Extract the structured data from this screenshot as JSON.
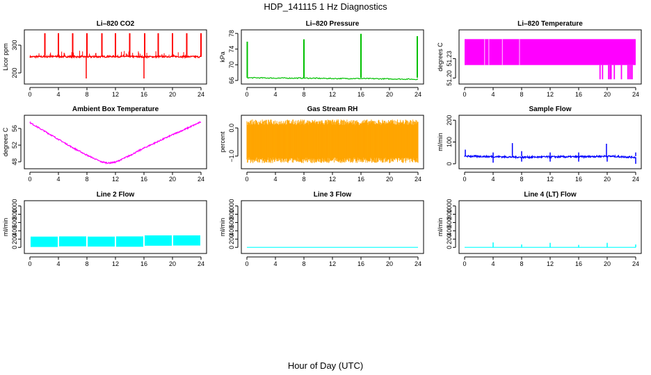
{
  "page": {
    "title": "HDP_141115  1 Hz Diagnostics",
    "xlabel": "Hour of Day (UTC)"
  },
  "chart_data": [
    {
      "id": "co2",
      "type": "line",
      "title": "Li–820 CO2",
      "ylabel": "Licor ppm",
      "color": "#ff0000",
      "style": "co2",
      "xlim": [
        0,
        24
      ],
      "ylim": [
        170,
        345
      ],
      "xticks": [
        0,
        4,
        8,
        12,
        16,
        20,
        24
      ],
      "xtick_labels": [
        "0",
        "4",
        "8",
        "12",
        "16",
        "20",
        "24"
      ],
      "yticks": [
        200,
        300
      ],
      "ytick_labels": [
        "200",
        "300"
      ],
      "x": [
        0,
        4,
        8,
        12,
        16,
        20,
        24
      ],
      "y": [
        258,
        259,
        258,
        259,
        258,
        259,
        258
      ],
      "spikes_up": [
        2.1,
        4.0,
        6.0,
        8.0,
        10.1,
        12.0,
        14.0,
        16.1,
        18.0,
        20.0,
        22.0,
        24.0
      ],
      "spikes_down": [
        7.9,
        16.0
      ]
    },
    {
      "id": "pressure",
      "type": "line",
      "title": "Li–820 Pressure",
      "ylabel": "kPa",
      "color": "#00c000",
      "style": "pressure",
      "xlim": [
        0,
        24
      ],
      "ylim": [
        65.8,
        78.2
      ],
      "xticks": [
        0,
        4,
        8,
        12,
        16,
        20,
        24
      ],
      "xtick_labels": [
        "0",
        "4",
        "8",
        "12",
        "16",
        "20",
        "24"
      ],
      "yticks": [
        66,
        70,
        74,
        78
      ],
      "ytick_labels": [
        "66",
        "70",
        "74",
        "78"
      ],
      "x": [
        0,
        4,
        8,
        12,
        16,
        20,
        24
      ],
      "y": [
        66.7,
        66.6,
        66.6,
        66.5,
        66.5,
        66.4,
        66.3
      ],
      "spikes": [
        [
          0.05,
          75.9
        ],
        [
          8.0,
          76.5
        ],
        [
          16.0,
          77.9
        ],
        [
          23.9,
          77.3
        ]
      ]
    },
    {
      "id": "temperature",
      "type": "line",
      "title": "Li–820 Temperature",
      "ylabel": "degrees C",
      "color": "#ff00ff",
      "style": "licortemp",
      "xlim": [
        0,
        24
      ],
      "ylim": [
        51.195,
        51.27
      ],
      "xticks": [
        0,
        4,
        8,
        12,
        16,
        20,
        24
      ],
      "xtick_labels": [
        "0",
        "4",
        "8",
        "12",
        "16",
        "20",
        "24"
      ],
      "yticks": [
        51.2,
        51.23
      ],
      "ytick_labels": [
        "51.20",
        "51.23"
      ],
      "y_levels": [
        51.22,
        51.26
      ],
      "gaps": [
        2.8,
        3.4,
        5.3,
        7.7
      ],
      "drops": [
        19.0,
        19.35,
        20.2,
        20.4,
        20.55,
        21.0,
        22.0,
        22.9,
        23.1,
        23.3,
        23.5
      ]
    },
    {
      "id": "ambient",
      "type": "line",
      "title": "Ambient Box Temperature",
      "ylabel": "degrees C",
      "color": "#ff00ff",
      "style": "ambient",
      "xlim": [
        0,
        24
      ],
      "ylim": [
        47,
        58.5
      ],
      "xticks": [
        0,
        4,
        8,
        12,
        16,
        20,
        24
      ],
      "xtick_labels": [
        "0",
        "4",
        "8",
        "12",
        "16",
        "20",
        "24"
      ],
      "yticks": [
        48,
        52,
        56
      ],
      "ytick_labels": [
        "48",
        "52",
        "56"
      ],
      "x": [
        0,
        2,
        4,
        6,
        8,
        10,
        11,
        12,
        14,
        16,
        18,
        20,
        22,
        24
      ],
      "y": [
        57.4,
        55.4,
        53.4,
        51.4,
        49.6,
        48.0,
        47.7,
        47.9,
        49.5,
        51.3,
        52.9,
        54.5,
        56.0,
        57.6
      ]
    },
    {
      "id": "rh",
      "type": "line",
      "title": "Gas Stream RH",
      "ylabel": "percent",
      "color": "#ffa500",
      "style": "band",
      "xlim": [
        0,
        24
      ],
      "ylim": [
        -1.35,
        0.35
      ],
      "xticks": [
        0,
        4,
        8,
        12,
        16,
        20,
        24
      ],
      "xtick_labels": [
        "0",
        "4",
        "8",
        "12",
        "16",
        "20",
        "24"
      ],
      "yticks": [
        -1.0,
        0.0
      ],
      "ytick_labels": [
        "−1.0",
        "0.0"
      ],
      "band": [
        -1.05,
        0.1
      ],
      "noise": 0.2
    },
    {
      "id": "sample_flow",
      "type": "line",
      "title": "Sample Flow",
      "ylabel": "ml/min",
      "color": "#0000ff",
      "style": "sampleflow",
      "xlim": [
        0,
        24
      ],
      "ylim": [
        -10,
        210
      ],
      "xticks": [
        0,
        4,
        8,
        12,
        16,
        20,
        24
      ],
      "xtick_labels": [
        "0",
        "4",
        "8",
        "12",
        "16",
        "20",
        "24"
      ],
      "yticks": [
        0,
        100,
        200
      ],
      "ytick_labels": [
        "0",
        "100",
        "200"
      ],
      "x": [
        0,
        4,
        8,
        12,
        16,
        20,
        24
      ],
      "y": [
        35,
        33,
        30,
        32,
        32,
        35,
        30
      ],
      "spikes_up": [
        [
          0.1,
          65
        ],
        [
          4.0,
          52
        ],
        [
          6.7,
          95
        ],
        [
          8.0,
          58
        ],
        [
          12.0,
          52
        ],
        [
          16.0,
          52
        ],
        [
          19.9,
          92
        ],
        [
          24.0,
          52
        ]
      ],
      "spikes_down": [
        [
          4.0,
          5
        ],
        [
          8.0,
          10
        ],
        [
          12.0,
          10
        ],
        [
          16.0,
          10
        ],
        [
          20.0,
          10
        ],
        [
          24.0,
          0
        ]
      ]
    },
    {
      "id": "line2",
      "type": "line",
      "title": "Line 2 Flow",
      "ylabel": "ml/min",
      "color": "#00ffff",
      "style": "line2",
      "xlim": [
        0,
        24
      ],
      "ylim": [
        -80,
        1060
      ],
      "xticks": [
        0,
        4,
        8,
        12,
        16,
        20,
        24
      ],
      "xtick_labels": [
        "0",
        "4",
        "8",
        "12",
        "16",
        "20",
        "24"
      ],
      "yticks": [
        0,
        200,
        400,
        600,
        800,
        1000
      ],
      "ytick_labels": [
        "0",
        "200",
        "400",
        "600",
        "800",
        "1000"
      ],
      "segments": [
        [
          0,
          4,
          260,
          10
        ],
        [
          4,
          8,
          265,
          25
        ],
        [
          8,
          12,
          260,
          20
        ],
        [
          12,
          16,
          265,
          15
        ],
        [
          16,
          20,
          290,
          40
        ],
        [
          20,
          24,
          290,
          45
        ]
      ]
    },
    {
      "id": "line3",
      "type": "line",
      "title": "Line 3 Flow",
      "ylabel": "ml/min",
      "color": "#00ffff",
      "style": "flat",
      "xlim": [
        0,
        24
      ],
      "ylim": [
        -80,
        1060
      ],
      "xticks": [
        0,
        4,
        8,
        12,
        16,
        20,
        24
      ],
      "xtick_labels": [
        "0",
        "4",
        "8",
        "12",
        "16",
        "20",
        "24"
      ],
      "yticks": [
        0,
        200,
        400,
        600,
        800,
        1000
      ],
      "ytick_labels": [
        "0",
        "200",
        "400",
        "600",
        "800",
        "1000"
      ],
      "x": [
        0,
        24
      ],
      "y": [
        0,
        0
      ]
    },
    {
      "id": "line4",
      "type": "line",
      "title": "Line 4 (LT) Flow",
      "ylabel": "ml/min",
      "color": "#00ffff",
      "style": "line4",
      "xlim": [
        0,
        24
      ],
      "ylim": [
        -80,
        1060
      ],
      "xticks": [
        0,
        4,
        8,
        12,
        16,
        20,
        24
      ],
      "xtick_labels": [
        "0",
        "4",
        "8",
        "12",
        "16",
        "20",
        "24"
      ],
      "yticks": [
        0,
        200,
        400,
        600,
        800,
        1000
      ],
      "ytick_labels": [
        "0",
        "200",
        "400",
        "600",
        "800",
        "1000"
      ],
      "x": [
        0,
        24
      ],
      "y": [
        0,
        0
      ],
      "spikes": [
        [
          4.0,
          120
        ],
        [
          8.0,
          70
        ],
        [
          12.0,
          110
        ],
        [
          16.0,
          60
        ],
        [
          20.0,
          110
        ],
        [
          24.0,
          70
        ]
      ]
    }
  ]
}
